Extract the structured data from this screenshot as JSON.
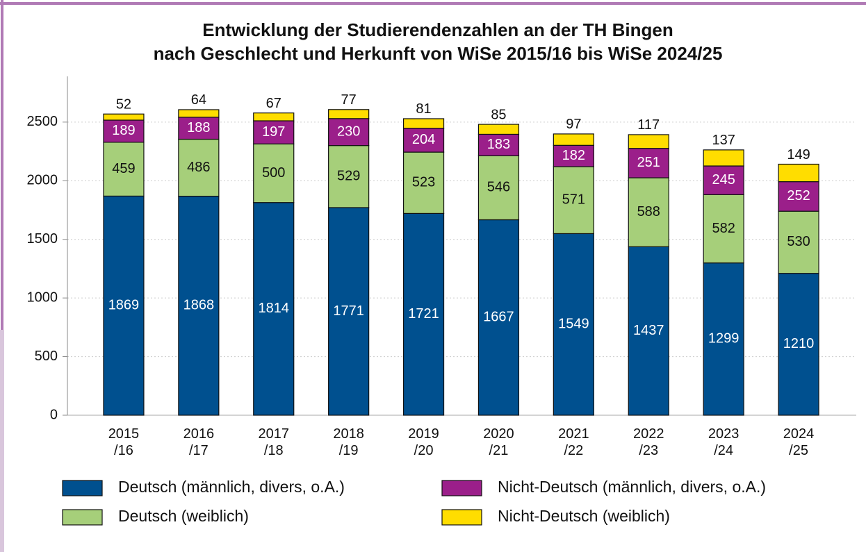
{
  "chart_data": {
    "type": "stacked_bar",
    "title": [
      "Entwicklung der Studierendenzahlen an der TH Bingen",
      "nach Geschlecht und Herkunft von WiSe 2015/16 bis WiSe 2024/25"
    ],
    "categories": [
      "2015\n/16",
      "2016\n/17",
      "2017\n/18",
      "2018\n/19",
      "2019\n/20",
      "2020\n/21",
      "2021\n/22",
      "2022\n/23",
      "2023\n/24",
      "2024\n/25"
    ],
    "series": [
      {
        "name": "Deutsch (männlich, divers, o.A.)",
        "color": "#00508f",
        "label_color": "#ffffff",
        "values": [
          1869,
          1868,
          1814,
          1771,
          1721,
          1667,
          1549,
          1437,
          1299,
          1210
        ]
      },
      {
        "name": "Deutsch (weiblich)",
        "color": "#a6cf7a",
        "label_color": "#111111",
        "values": [
          459,
          486,
          500,
          529,
          523,
          546,
          571,
          588,
          582,
          530
        ]
      },
      {
        "name": "Nicht-Deutsch (männlich, divers, o.A.)",
        "color": "#9b1f8a",
        "label_color": "#ffffff",
        "values": [
          189,
          188,
          197,
          230,
          204,
          183,
          182,
          251,
          245,
          252
        ]
      },
      {
        "name": "Nicht-Deutsch (weiblich)",
        "color": "#ffdd00",
        "label_color": "#111111",
        "values": [
          52,
          64,
          67,
          77,
          81,
          85,
          97,
          117,
          137,
          149
        ]
      }
    ],
    "ylim": [
      0,
      2890
    ],
    "yticks": [
      0,
      500,
      1000,
      1500,
      2000,
      2500
    ],
    "grid": true
  }
}
